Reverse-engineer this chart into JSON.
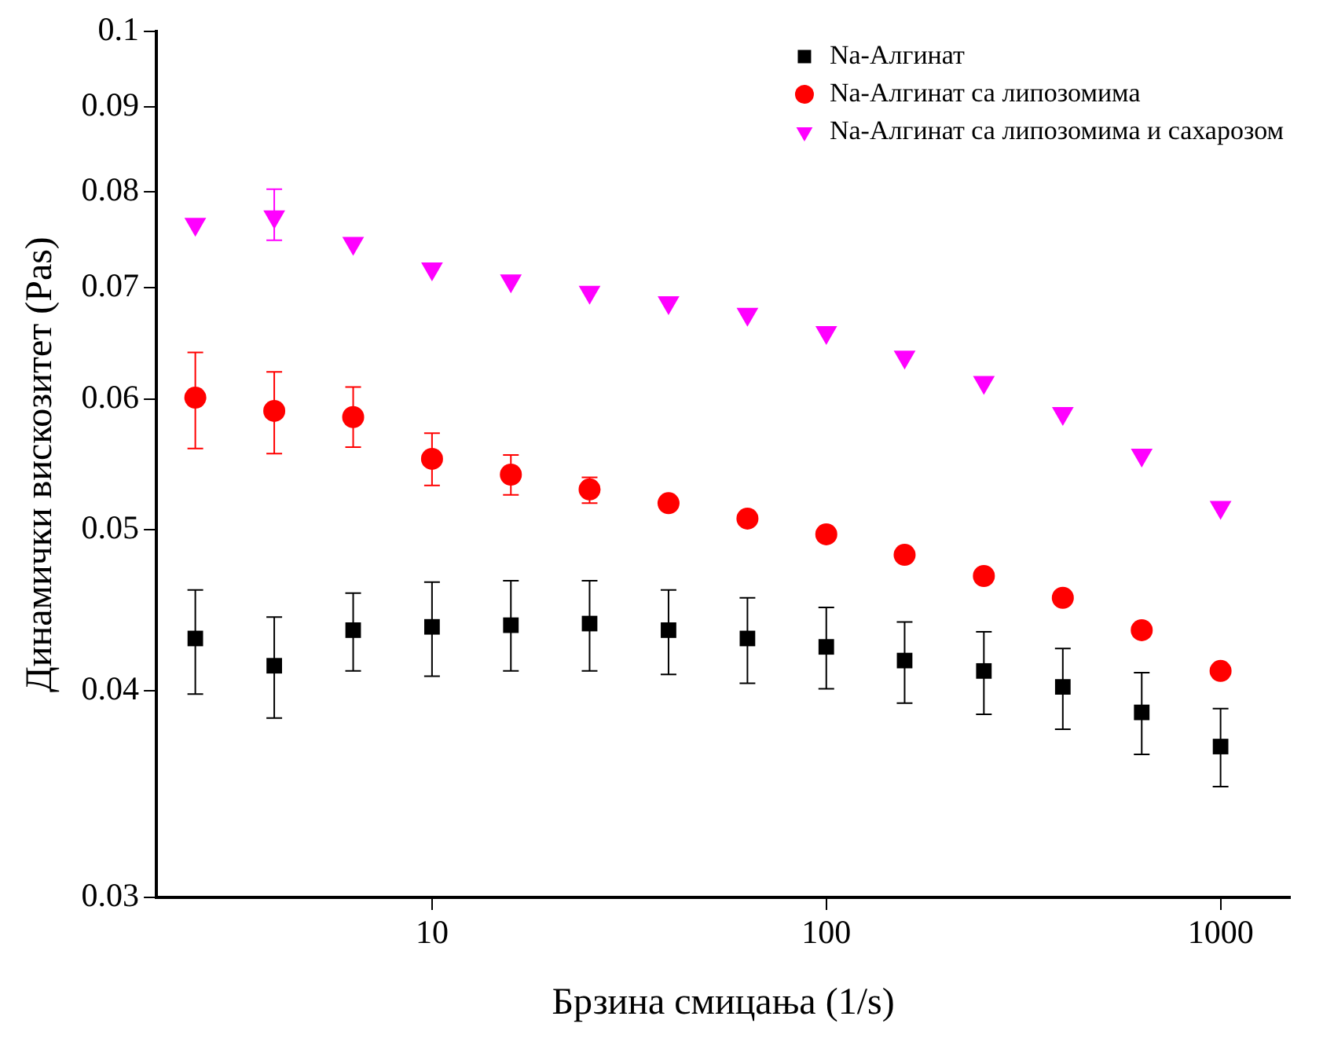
{
  "chart_data": {
    "type": "scatter",
    "xlabel": "Брзина смицања (1/s)",
    "ylabel": "Динамички вискозитет (Pas)",
    "x": [
      2.51,
      3.98,
      6.31,
      10,
      15.85,
      25.1,
      39.8,
      63.1,
      100,
      158,
      251,
      398,
      631,
      1000
    ],
    "log": "xy",
    "xlim": [
      2,
      1500
    ],
    "xticks": [
      10,
      100,
      1000
    ],
    "ylim": [
      0.03,
      0.1
    ],
    "yticks": [
      0.03,
      0.04,
      0.05,
      0.06,
      0.07,
      0.08,
      0.09,
      0.1
    ],
    "grid": false,
    "legend": "top right",
    "series": [
      {
        "name": "Na-Алгинат",
        "color": "#000000",
        "marker": "square",
        "values": [
          0.043,
          0.0414,
          0.0435,
          0.0437,
          0.0438,
          0.0439,
          0.0435,
          0.043,
          0.0425,
          0.0417,
          0.0411,
          0.0402,
          0.0388,
          0.037
        ],
        "errors": [
          [
            0.0398,
            0.046
          ],
          [
            0.0385,
            0.0443
          ],
          [
            0.0411,
            0.0458
          ],
          [
            0.0408,
            0.0465
          ],
          [
            0.0411,
            0.0466
          ],
          [
            0.0411,
            0.0466
          ],
          [
            0.0409,
            0.046
          ],
          [
            0.0404,
            0.0455
          ],
          [
            0.0401,
            0.0449
          ],
          [
            0.0393,
            0.044
          ],
          [
            0.0387,
            0.0434
          ],
          [
            0.0379,
            0.0424
          ],
          [
            0.0366,
            0.041
          ],
          [
            0.035,
            0.039
          ]
        ]
      },
      {
        "name": "Na-Алгинат са липозомима",
        "color": "#ff0000",
        "marker": "circle",
        "values": [
          0.0601,
          0.059,
          0.0585,
          0.0552,
          0.054,
          0.0529,
          0.0519,
          0.0508,
          0.0497,
          0.0483,
          0.0469,
          0.0455,
          0.0435,
          0.0411
        ],
        "errors": [
          [
            0.056,
            0.064
          ],
          [
            0.0556,
            0.0623
          ],
          [
            0.0561,
            0.061
          ],
          [
            0.0532,
            0.0572
          ],
          [
            0.0525,
            0.0555
          ],
          [
            0.0519,
            0.0538
          ],
          null,
          null,
          null,
          null,
          null,
          null,
          null,
          null
        ]
      },
      {
        "name": "Na-Алгинат са липозомима и сахарозом",
        "color": "#ff00ff",
        "marker": "triangle",
        "values": [
          0.0765,
          0.0773,
          0.0745,
          0.0719,
          0.0707,
          0.0696,
          0.0686,
          0.0675,
          0.0658,
          0.0636,
          0.0614,
          0.0588,
          0.0555,
          0.0516
        ],
        "errors": [
          null,
          [
            0.0748,
            0.0803
          ],
          null,
          null,
          null,
          null,
          null,
          null,
          null,
          null,
          null,
          null,
          null,
          null
        ]
      }
    ]
  }
}
